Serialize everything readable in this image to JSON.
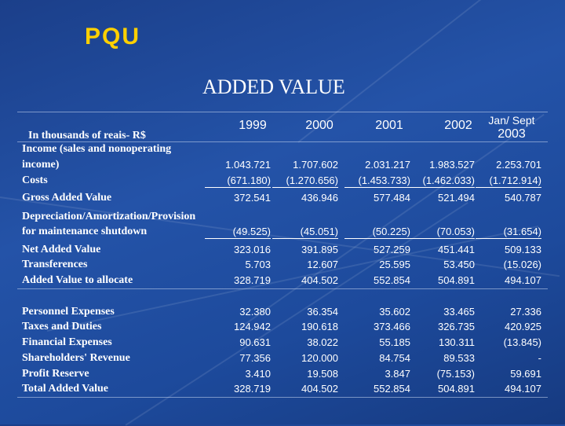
{
  "logo": "PQU",
  "title": "ADDED VALUE",
  "unit_label": "In thousands of reais- R$",
  "columns": [
    "1999",
    "2000",
    "2001",
    "2002"
  ],
  "last_column": {
    "line1": "Jan/ Sept",
    "line2": "2003"
  },
  "rows": [
    {
      "label": [
        "Income (sales and nonoperating",
        "income)"
      ],
      "values": [
        "1.043.721",
        "1.707.602",
        "2.031.217",
        "1.983.527",
        "2.253.701"
      ]
    },
    {
      "label": [
        "Costs"
      ],
      "values": [
        "(671.180)",
        "(1.270.656)",
        "(1.453.733)",
        "(1.462.033)",
        "(1.712.914)"
      ]
    },
    {
      "label": [
        "Gross Added Value"
      ],
      "values": [
        "372.541",
        "436.946",
        "577.484",
        "521.494",
        "540.787"
      ]
    },
    {
      "label": [
        "Depreciation/Amortization/Provision",
        "for maintenance shutdown"
      ],
      "values": [
        "(49.525)",
        "(45.051)",
        "(50.225)",
        "(70.053)",
        "(31.654)"
      ]
    },
    {
      "label": [
        "Net Added Value"
      ],
      "values": [
        "323.016",
        "391.895",
        "527.259",
        "451.441",
        "509.133"
      ]
    },
    {
      "label": [
        "Transferences"
      ],
      "values": [
        "5.703",
        "12.607",
        "25.595",
        "53.450",
        "(15.026)"
      ]
    },
    {
      "label": [
        "Added Value to allocate"
      ],
      "values": [
        "328.719",
        "404.502",
        "552.854",
        "504.891",
        "494.107"
      ]
    },
    {
      "label": [
        "Personnel Expenses"
      ],
      "values": [
        "32.380",
        "36.354",
        "35.602",
        "33.465",
        "27.336"
      ]
    },
    {
      "label": [
        "Taxes and Duties"
      ],
      "values": [
        "124.942",
        "190.618",
        "373.466",
        "326.735",
        "420.925"
      ]
    },
    {
      "label": [
        "Financial Expenses"
      ],
      "values": [
        "90.631",
        "38.022",
        "55.185",
        "130.311",
        "(13.845)"
      ]
    },
    {
      "label": [
        "Shareholders' Revenue"
      ],
      "values": [
        "77.356",
        "120.000",
        "84.754",
        "89.533",
        "-"
      ]
    },
    {
      "label": [
        "Profit Reserve"
      ],
      "values": [
        "3.410",
        "19.508",
        "3.847",
        "(75.153)",
        "59.691"
      ]
    },
    {
      "label": [
        "Total Added Value"
      ],
      "values": [
        "328.719",
        "404.502",
        "552.854",
        "504.891",
        "494.107"
      ]
    }
  ]
}
